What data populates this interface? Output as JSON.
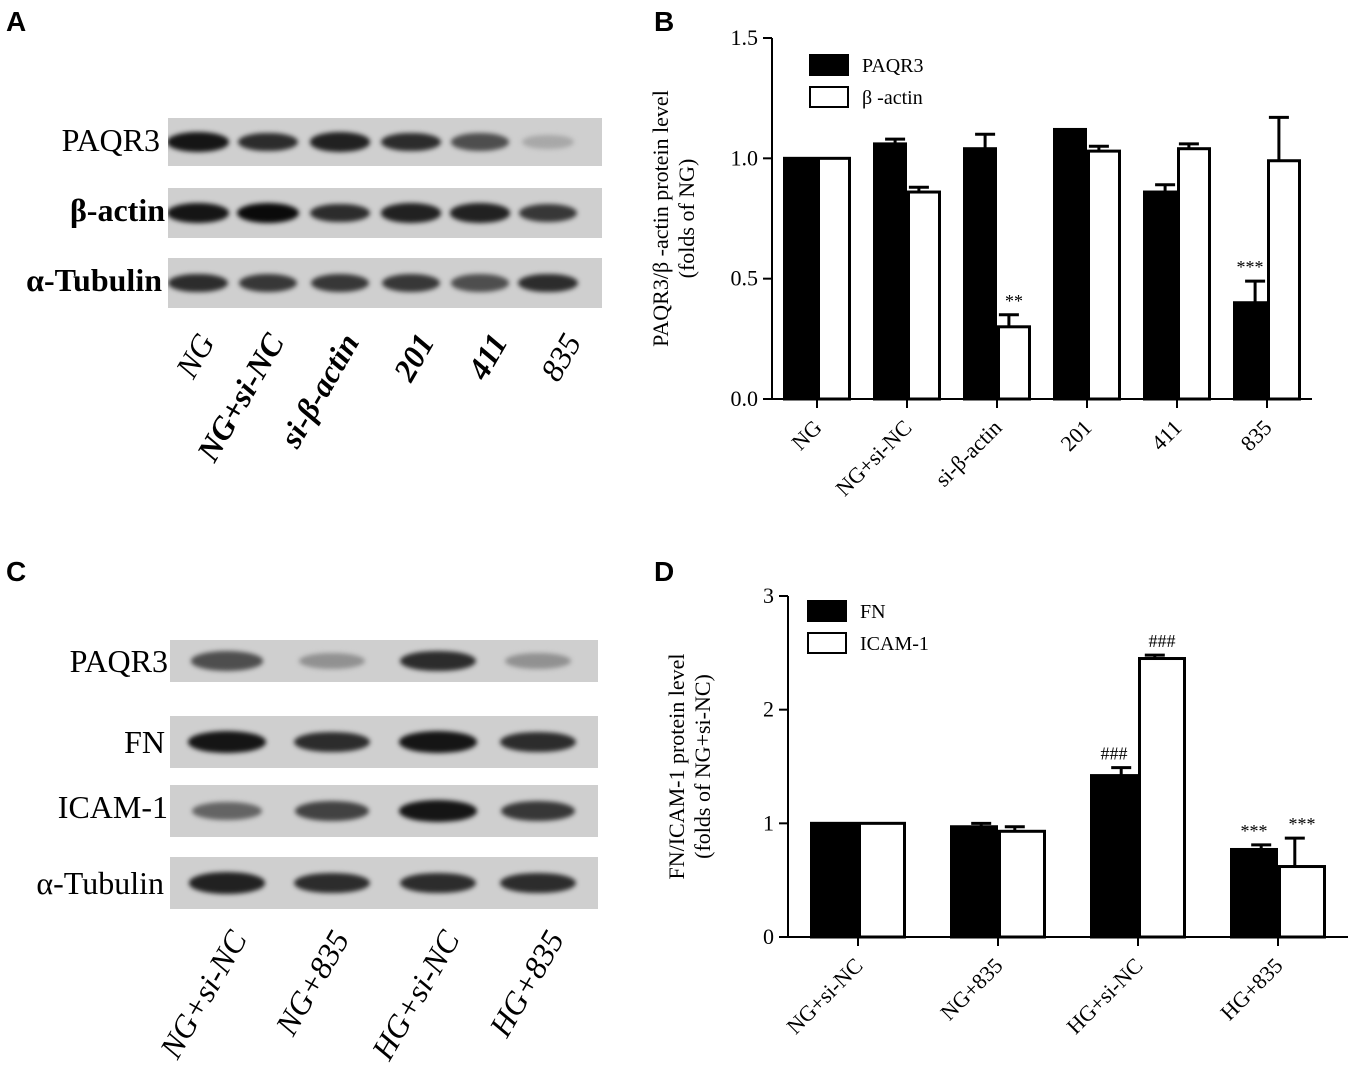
{
  "panels": {
    "a": {
      "letter": "A",
      "rows": [
        "PAQR3",
        "β-actin",
        "α-Tubulin"
      ],
      "lanes": [
        "NG",
        "NG+si-NC",
        "si-β-actin",
        "201",
        "411",
        "835"
      ],
      "band_intensity": [
        [
          0.95,
          0.85,
          0.9,
          0.85,
          0.7,
          0.3
        ],
        [
          0.95,
          1.0,
          0.85,
          0.9,
          0.9,
          0.8
        ],
        [
          0.85,
          0.8,
          0.8,
          0.8,
          0.7,
          0.85
        ]
      ]
    },
    "b": {
      "letter": "B"
    },
    "c": {
      "letter": "C",
      "rows": [
        "PAQR3",
        "FN",
        "ICAM-1",
        "α-Tubulin"
      ],
      "lanes": [
        "NG+si-NC",
        "NG+835",
        "HG+si-NC",
        "HG+835"
      ],
      "band_intensity": [
        [
          0.7,
          0.4,
          0.85,
          0.4
        ],
        [
          0.95,
          0.85,
          0.95,
          0.85
        ],
        [
          0.6,
          0.75,
          0.95,
          0.8
        ],
        [
          0.9,
          0.85,
          0.85,
          0.85
        ]
      ]
    },
    "d": {
      "letter": "D"
    }
  },
  "chart_data": [
    {
      "type": "bar",
      "categories": [
        "NG",
        "NG+si-NC",
        "si-β-actin",
        "201",
        "411",
        "835"
      ],
      "series": [
        {
          "name": "PAQR3",
          "values": [
            1.0,
            1.06,
            1.04,
            1.12,
            0.86,
            0.4
          ],
          "errors": [
            0,
            0.02,
            0.06,
            0,
            0.03,
            0.09
          ],
          "fill": "#000000"
        },
        {
          "name": "β -actin",
          "values": [
            1.0,
            0.86,
            0.3,
            1.03,
            1.04,
            0.99
          ],
          "errors": [
            0,
            0.02,
            0.05,
            0.02,
            0.02,
            0.18
          ],
          "fill": "#ffffff"
        }
      ],
      "annotations": [
        {
          "category": "si-β-actin",
          "series": "β -actin",
          "text": "**"
        },
        {
          "category": "835",
          "series": "PAQR3",
          "text": "***"
        }
      ],
      "ylabel_lines": [
        "PAQR3/β -actin protein level",
        "(folds of NG)"
      ],
      "yticks": [
        "0.0",
        "0.5",
        "1.0",
        "1.5"
      ],
      "ylim": [
        0,
        1.5
      ],
      "legend": "top-left"
    },
    {
      "type": "bar",
      "categories": [
        "NG+si-NC",
        "NG+835",
        "HG+si-NC",
        "HG+835"
      ],
      "series": [
        {
          "name": "FN",
          "values": [
            1.0,
            0.97,
            1.42,
            0.77
          ],
          "errors": [
            0,
            0.03,
            0.07,
            0.04
          ],
          "fill": "#000000"
        },
        {
          "name": "ICAM-1",
          "values": [
            1.0,
            0.93,
            2.45,
            0.62
          ],
          "errors": [
            0,
            0.04,
            0.03,
            0.25
          ],
          "fill": "#ffffff"
        }
      ],
      "annotations": [
        {
          "category": "HG+si-NC",
          "series": "FN",
          "text": "###"
        },
        {
          "category": "HG+si-NC",
          "series": "ICAM-1",
          "text": "###"
        },
        {
          "category": "HG+835",
          "series": "FN",
          "text": "***"
        },
        {
          "category": "HG+835",
          "series": "ICAM-1",
          "text": "***"
        }
      ],
      "ylabel_lines": [
        "FN/ICAM-1 protein level",
        "(folds of NG+si-NC)"
      ],
      "yticks": [
        "0",
        "1",
        "2",
        "3"
      ],
      "ylim": [
        0,
        3
      ],
      "legend": "top-left"
    }
  ]
}
